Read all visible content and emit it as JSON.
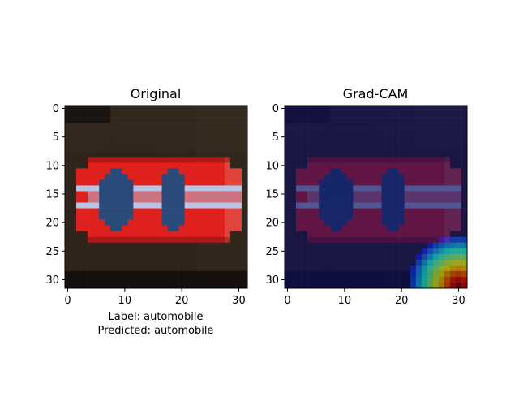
{
  "panels": [
    {
      "title": "Original",
      "caption_lines": [
        "Label: automobile",
        "Predicted: automobile"
      ]
    },
    {
      "title": "Grad-CAM",
      "caption_lines": []
    }
  ],
  "axes": {
    "x_ticks": [
      "0",
      "10",
      "20",
      "30"
    ],
    "y_ticks": [
      "0",
      "5",
      "10",
      "15",
      "20",
      "25",
      "30"
    ]
  },
  "image": {
    "grid_size": 32,
    "background_color": "#2a2119",
    "car_body_color": "#e0201c",
    "car_window_color": "#2a4a7a",
    "stripe_color": "#b8c4e6",
    "cam_background_color": "#0b0d5e",
    "cam_hot_color": "#8b0000"
  }
}
